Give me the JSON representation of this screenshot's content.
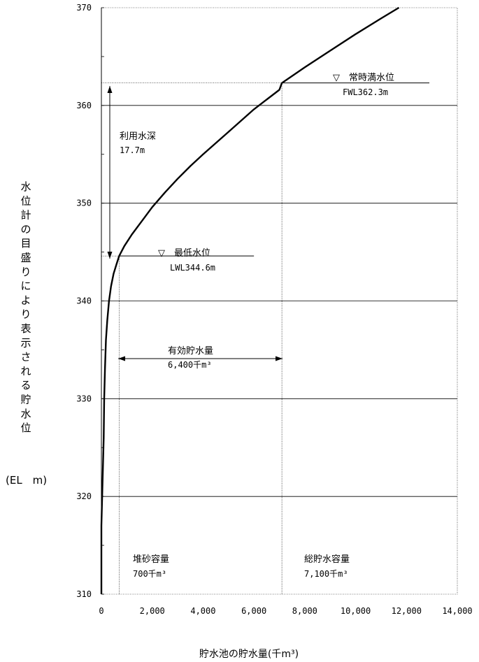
{
  "chart_data": {
    "type": "line",
    "title": "",
    "xlabel": "貯水池の貯水量(千m³)",
    "ylabel_chars": [
      "水",
      "位",
      "計",
      "の",
      "目",
      "盛",
      "り",
      "に",
      "よ",
      "り",
      "表",
      "示",
      "さ",
      "れ",
      "る",
      "貯",
      "水",
      "位"
    ],
    "ylabel_unit": "(EL　m)",
    "xlim": [
      0,
      14000
    ],
    "ylim": [
      310,
      370
    ],
    "x_ticks": [
      0,
      2000,
      4000,
      6000,
      8000,
      10000,
      12000,
      14000
    ],
    "x_tick_labels": [
      "0",
      "2,000",
      "4,000",
      "6,000",
      "8,000",
      "10,000",
      "12,000",
      "14,000"
    ],
    "y_ticks": [
      310,
      320,
      330,
      340,
      350,
      360,
      370
    ],
    "y_tick_labels": [
      "310",
      "320",
      "330",
      "340",
      "350",
      "360",
      "370"
    ],
    "grid": "horizontal",
    "series": [
      {
        "points": [
          [
            0,
            310
          ],
          [
            0,
            317
          ],
          [
            30,
            320
          ],
          [
            60,
            323
          ],
          [
            90,
            326
          ],
          [
            110,
            330
          ],
          [
            140,
            333
          ],
          [
            180,
            336
          ],
          [
            230,
            338
          ],
          [
            300,
            340
          ],
          [
            380,
            341.5
          ],
          [
            480,
            342.8
          ],
          [
            600,
            343.8
          ],
          [
            700,
            344.6
          ],
          [
            900,
            345.6
          ],
          [
            1200,
            346.8
          ],
          [
            1600,
            348.2
          ],
          [
            2000,
            349.6
          ],
          [
            2500,
            351.1
          ],
          [
            3000,
            352.5
          ],
          [
            3500,
            353.8
          ],
          [
            4000,
            355.0
          ],
          [
            5000,
            357.3
          ],
          [
            6000,
            359.6
          ],
          [
            7000,
            361.6
          ],
          [
            7100,
            362.3
          ],
          [
            8000,
            363.9
          ],
          [
            9000,
            365.6
          ],
          [
            10000,
            367.3
          ],
          [
            11000,
            368.9
          ],
          [
            11700,
            370
          ]
        ]
      }
    ],
    "reference_lines": {
      "fwl": {
        "y": 362.3,
        "x_from": 0,
        "x_to": 12900
      },
      "lwl": {
        "y": 344.6,
        "x_from": 0,
        "x_to": 6000
      },
      "v_dead": {
        "x": 700
      },
      "v_total": {
        "x": 7100
      }
    },
    "annotations": {
      "fwl_name": "▽　常時満水位",
      "fwl_value": "FWL362.3m",
      "lwl_name": "▽　最低水位",
      "lwl_value": "LWL344.6m",
      "depth_name": "利用水深",
      "depth_value": "17.7m",
      "effective_name": "有効貯水量",
      "effective_value": "6,400千m³",
      "sediment_name": "堆砂容量",
      "sediment_value": "700千m³",
      "total_name": "総貯水容量",
      "total_value": "7,100千m³"
    }
  }
}
